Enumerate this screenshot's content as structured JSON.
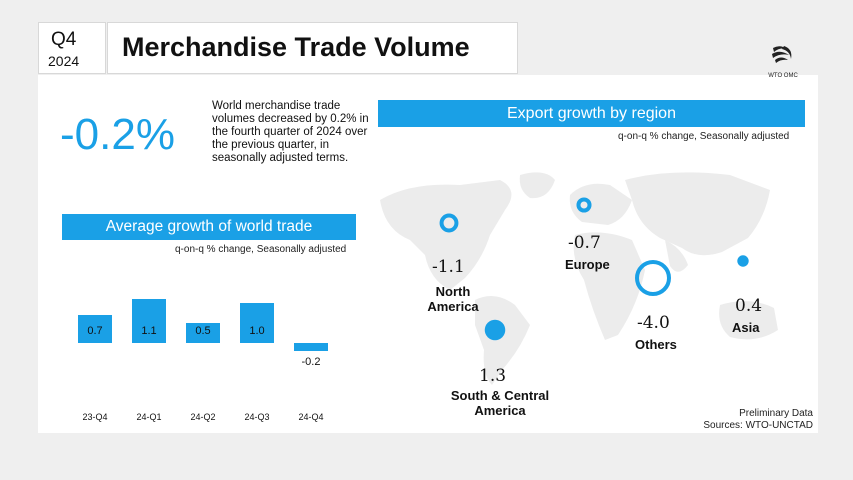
{
  "header": {
    "quarter": "Q4",
    "year": "2024",
    "title": "Merchandise Trade Volume"
  },
  "logo": {
    "text": "WTO OMC",
    "icon": "wto-logo-icon"
  },
  "headline": {
    "value": "-0.2%",
    "description": "World merchandise trade volumes decreased by 0.2% in the fourth quarter of 2024 over the previous quarter, in seasonally adjusted terms."
  },
  "colors": {
    "accent": "#1aa0e6",
    "map": "#ececec"
  },
  "chart_data": [
    {
      "type": "bar",
      "title": "Average growth of world trade",
      "subtitle": "q-on-q % change, Seasonally adjusted",
      "categories": [
        "23-Q4",
        "24-Q1",
        "24-Q2",
        "24-Q3",
        "24-Q4"
      ],
      "values": [
        0.7,
        1.1,
        0.5,
        1.0,
        -0.2
      ],
      "data_labels": [
        "0.7",
        "1.1",
        "0.5",
        "1.0",
        "-0.2"
      ]
    },
    {
      "type": "scatter",
      "title": "Export growth  by region",
      "subtitle": "q-on-q % change, Seasonally adjusted",
      "regions": [
        {
          "name": "North America",
          "value": -1.1,
          "label": "-1.1"
        },
        {
          "name": "South & Central America",
          "value": 1.3,
          "label": "1.3"
        },
        {
          "name": "Europe",
          "value": -0.7,
          "label": "-0.7"
        },
        {
          "name": "Others",
          "value": -4.0,
          "label": "-4.0"
        },
        {
          "name": "Asia",
          "value": 0.4,
          "label": "0.4"
        }
      ]
    }
  ],
  "footer": {
    "preliminary": "Preliminary Data",
    "sources": "Sources: WTO-UNCTAD"
  }
}
